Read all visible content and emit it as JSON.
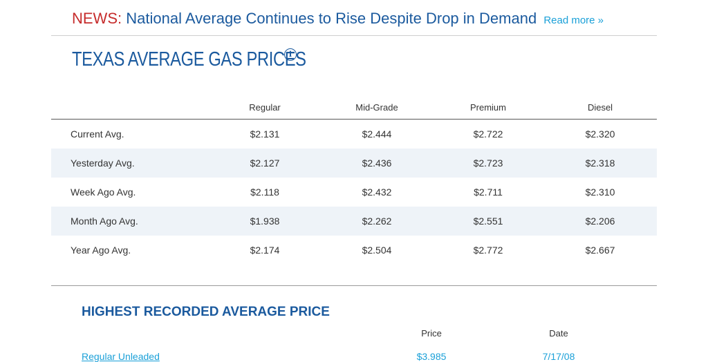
{
  "news": {
    "label": "NEWS:",
    "headline": "National Average Continues to Rise Despite Drop in Demand",
    "read_more": "Read more »"
  },
  "title": "TEXAS AVERAGE GAS PRICES",
  "info_icon": "info-icon",
  "table": {
    "headers": [
      "",
      "Regular",
      "Mid-Grade",
      "Premium",
      "Diesel"
    ],
    "rows": [
      {
        "label": "Current Avg.",
        "values": [
          "$2.131",
          "$2.444",
          "$2.722",
          "$2.320"
        ]
      },
      {
        "label": "Yesterday Avg.",
        "values": [
          "$2.127",
          "$2.436",
          "$2.723",
          "$2.318"
        ]
      },
      {
        "label": "Week Ago Avg.",
        "values": [
          "$2.118",
          "$2.432",
          "$2.711",
          "$2.310"
        ]
      },
      {
        "label": "Month Ago Avg.",
        "values": [
          "$1.938",
          "$2.262",
          "$2.551",
          "$2.206"
        ]
      },
      {
        "label": "Year Ago Avg.",
        "values": [
          "$2.174",
          "$2.504",
          "$2.772",
          "$2.667"
        ]
      }
    ]
  },
  "highest": {
    "title": "HIGHEST RECORDED AVERAGE PRICE",
    "headers": {
      "price": "Price",
      "date": "Date"
    },
    "rows": [
      {
        "name": "Regular Unleaded",
        "price": "$3.985",
        "date": "7/17/08"
      }
    ]
  },
  "colors": {
    "brand_blue": "#1b5a9e",
    "news_red": "#c62c2c",
    "link_blue": "#1aa0d8",
    "row_alt": "#eef3f8"
  }
}
